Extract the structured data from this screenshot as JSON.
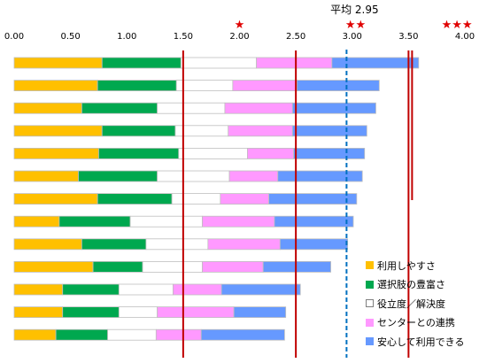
{
  "chart_data": {
    "type": "bar",
    "stacked": true,
    "orientation": "horizontal",
    "title": "",
    "xlabel": "",
    "ylabel": "",
    "xlim": [
      0,
      4
    ],
    "x_ticks": [
      "0.00",
      "0.50",
      "1.00",
      "1.50",
      "2.00",
      "2.50",
      "3.00",
      "3.50",
      "4.00"
    ],
    "categories": [
      "",
      "",
      "",
      "",
      "",
      "",
      "",
      "",
      "",
      "",
      "",
      "",
      ""
    ],
    "series": [
      {
        "name": "利用しやすさ",
        "color": "#ffc000",
        "values": [
          0.78,
          0.74,
          0.6,
          0.78,
          0.75,
          0.57,
          0.74,
          0.4,
          0.6,
          0.7,
          0.43,
          0.43,
          0.37
        ]
      },
      {
        "name": "選択肢の豊富さ",
        "color": "#00a84f",
        "values": [
          0.7,
          0.7,
          0.67,
          0.65,
          0.71,
          0.7,
          0.66,
          0.63,
          0.57,
          0.44,
          0.5,
          0.5,
          0.46
        ]
      },
      {
        "name": "役立度／解決度",
        "color": "#ffffff",
        "values": [
          0.67,
          0.5,
          0.6,
          0.47,
          0.61,
          0.64,
          0.43,
          0.64,
          0.55,
          0.53,
          0.48,
          0.34,
          0.43
        ]
      },
      {
        "name": "センターとの連携",
        "color": "#ff99ff",
        "values": [
          0.67,
          0.57,
          0.6,
          0.57,
          0.41,
          0.43,
          0.43,
          0.64,
          0.64,
          0.54,
          0.43,
          0.68,
          0.4
        ]
      },
      {
        "name": "安心して利用できる",
        "color": "#6699ff",
        "values": [
          0.77,
          0.73,
          0.74,
          0.66,
          0.63,
          0.75,
          0.78,
          0.7,
          0.6,
          0.6,
          0.7,
          0.46,
          0.74
        ]
      }
    ],
    "reference_lines": [
      {
        "value": 1.5,
        "style": "solid",
        "color": "#c00000"
      },
      {
        "value": 2.5,
        "style": "solid",
        "color": "#c00000"
      },
      {
        "value": 3.5,
        "style": "solid",
        "color": "#c00000"
      },
      {
        "value": 2.95,
        "style": "dashed",
        "color": "#0070c0",
        "label": "平均 2.95"
      }
    ],
    "star_markers": [
      {
        "value": 2.0,
        "stars": "★"
      },
      {
        "value": 3.03,
        "stars": "★★"
      },
      {
        "value": 3.93,
        "stars": "★★★"
      }
    ],
    "legend": {
      "position": "bottom-right"
    },
    "grid": false
  }
}
